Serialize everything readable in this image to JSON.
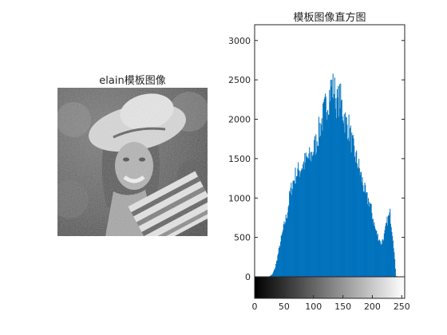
{
  "figure": {
    "left_title": "elain模板图像",
    "right_title": "模板图像直方图"
  },
  "image_panel": {
    "subject": "grayscale portrait of a smiling woman wearing a white hat, holding a striped towel, foliage background",
    "colormap": "gray"
  },
  "colorbar": {
    "type": "gray gradient",
    "from": "#000000",
    "to": "#ffffff",
    "xrange": [
      0,
      255
    ]
  },
  "chart_data": {
    "type": "bar",
    "title": "模板图像直方图",
    "xlabel": "",
    "ylabel": "",
    "xlim": [
      0,
      255
    ],
    "ylim": [
      0,
      3200
    ],
    "xticks": [
      0,
      50,
      100,
      150,
      200,
      250
    ],
    "yticks": [
      0,
      500,
      1000,
      1500,
      2000,
      2500,
      3000
    ],
    "bar_color": "#0072BD",
    "grid": false,
    "x": [
      20,
      25,
      30,
      35,
      40,
      45,
      50,
      55,
      60,
      65,
      70,
      75,
      80,
      85,
      90,
      95,
      100,
      105,
      110,
      115,
      120,
      125,
      130,
      135,
      140,
      145,
      150,
      155,
      160,
      165,
      170,
      175,
      180,
      185,
      190,
      195,
      200,
      205,
      210,
      215,
      220,
      225,
      230,
      235,
      240,
      245
    ],
    "values": [
      0,
      5,
      30,
      120,
      300,
      480,
      650,
      800,
      1050,
      1200,
      1300,
      1350,
      1400,
      1450,
      1500,
      1520,
      1620,
      1720,
      1880,
      2000,
      2150,
      2250,
      2420,
      2380,
      2200,
      2280,
      2100,
      1950,
      1900,
      1700,
      1550,
      1450,
      1300,
      1150,
      1000,
      950,
      780,
      600,
      500,
      420,
      520,
      700,
      800,
      500,
      10,
      0
    ]
  }
}
